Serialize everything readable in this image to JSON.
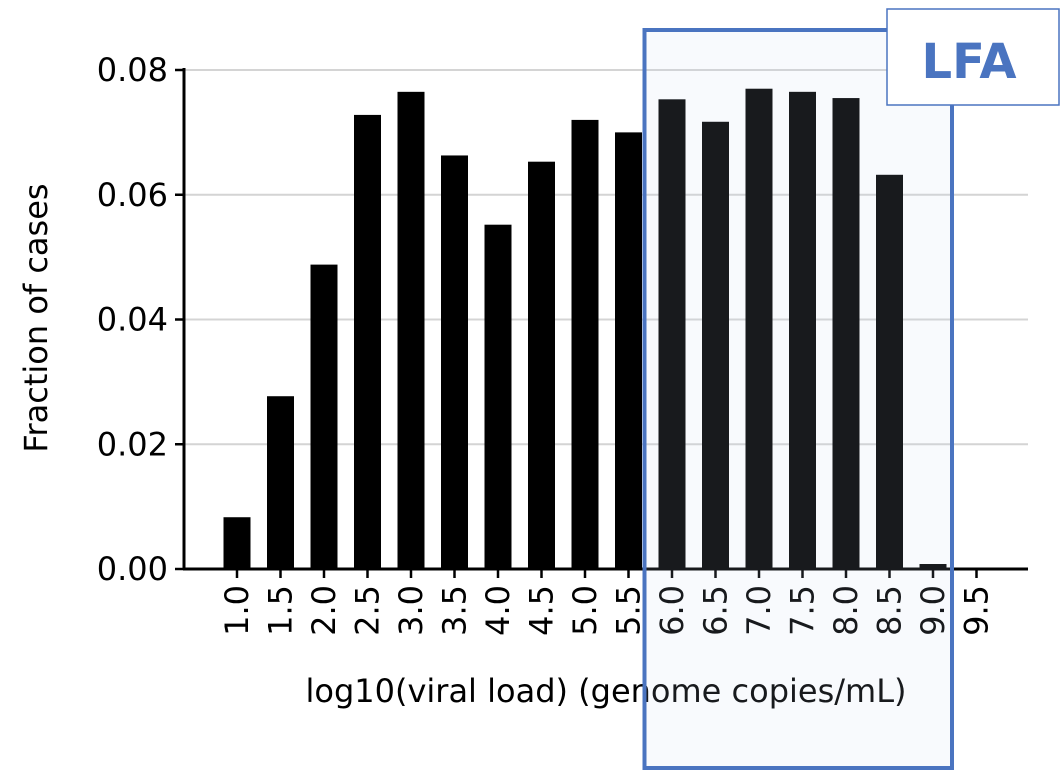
{
  "chart_data": {
    "type": "bar",
    "xlabel": "log10(viral load) (genome copies/mL)",
    "ylabel": "Fraction of cases",
    "categories": [
      "1.0",
      "1.5",
      "2.0",
      "2.5",
      "3.0",
      "3.5",
      "4.0",
      "4.5",
      "5.0",
      "5.5",
      "6.0",
      "6.5",
      "7.0",
      "7.5",
      "8.0",
      "8.5",
      "9.0",
      "9.5"
    ],
    "values": [
      0.0083,
      0.0277,
      0.0488,
      0.0728,
      0.0765,
      0.0663,
      0.0552,
      0.0653,
      0.072,
      0.07,
      0.0753,
      0.0717,
      0.077,
      0.0765,
      0.0755,
      0.0632,
      0.0008,
      0.0
    ],
    "ylim": [
      0,
      0.08
    ],
    "yticks": [
      "0.00",
      "0.02",
      "0.04",
      "0.06",
      "0.08"
    ],
    "ytick_values": [
      0,
      0.02,
      0.04,
      0.06,
      0.08
    ],
    "grid": "horizontal",
    "bar_color": "#000000",
    "highlight": {
      "label": "LFA",
      "x_range": [
        "5.5",
        "9.0"
      ],
      "fill_color": "#c5d3eb",
      "border_color": "#4a74c0"
    }
  }
}
